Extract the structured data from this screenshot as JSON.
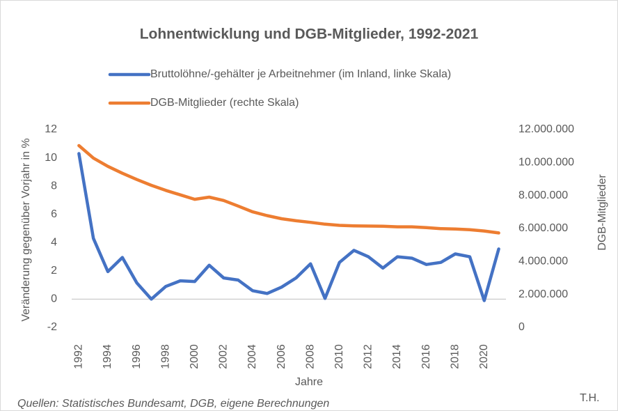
{
  "chart_data": {
    "type": "line",
    "title": "Lohnentwicklung und DGB-Mitglieder, 1992-2021",
    "x_label": "Jahre",
    "y_label": "Veränderung gegenüber Vorjahr in %",
    "y2_label": "DGB-Mitglieder",
    "source": "Quellen: Statistisches Bundesamt, DGB, eigene Berechnungen",
    "author": "T.H.",
    "categories": [
      "1992",
      null,
      "1994",
      null,
      "1996",
      null,
      "1998",
      null,
      "2000",
      null,
      "2002",
      null,
      "2004",
      null,
      "2006",
      null,
      "2008",
      null,
      "2010",
      null,
      "2012",
      null,
      "2014",
      null,
      "2016",
      null,
      "2018",
      null,
      "2020",
      null
    ],
    "series": [
      {
        "name": "Bruttolöhne/-gehälter je Arbeitnehmer (im Inland, linke Skala)",
        "color": "#4472c4",
        "axis": "y",
        "values": [
          10.3,
          4.3,
          1.95,
          2.95,
          1.15,
          0.0,
          0.9,
          1.3,
          1.25,
          2.4,
          1.5,
          1.35,
          0.6,
          0.4,
          0.85,
          1.5,
          2.5,
          0.05,
          2.6,
          3.45,
          3.0,
          2.2,
          3.0,
          2.9,
          2.45,
          2.6,
          3.2,
          3.0,
          -0.1,
          3.55
        ]
      },
      {
        "name": "DGB-Mitglieder (rechte Skala)",
        "color": "#ed7d31",
        "axis": "y2",
        "values": [
          11030000,
          10270000,
          9770000,
          9350000,
          8970000,
          8620000,
          8310000,
          8040000,
          7770000,
          7900000,
          7700000,
          7360000,
          7010000,
          6780000,
          6590000,
          6470000,
          6370000,
          6260000,
          6190000,
          6160000,
          6150000,
          6140000,
          6100000,
          6100000,
          6050000,
          5990000,
          5970000,
          5930000,
          5850000,
          5730000
        ]
      }
    ],
    "ylim": [
      -2,
      12
    ],
    "yticks": [
      -2,
      0,
      2,
      4,
      6,
      8,
      10,
      12
    ],
    "y2lim": [
      0,
      12000000
    ],
    "y2ticks": [
      0,
      {
        "value": 2000000,
        "label": "2.000.000"
      },
      {
        "value": 4000000,
        "label": "4.000.000"
      },
      {
        "value": 6000000,
        "label": "6.000.000"
      },
      {
        "value": 8000000,
        "label": "8.000.000"
      },
      {
        "value": 10000000,
        "label": "10.000.000"
      },
      {
        "value": 12000000,
        "label": "12.000.000"
      }
    ],
    "grid": false
  }
}
